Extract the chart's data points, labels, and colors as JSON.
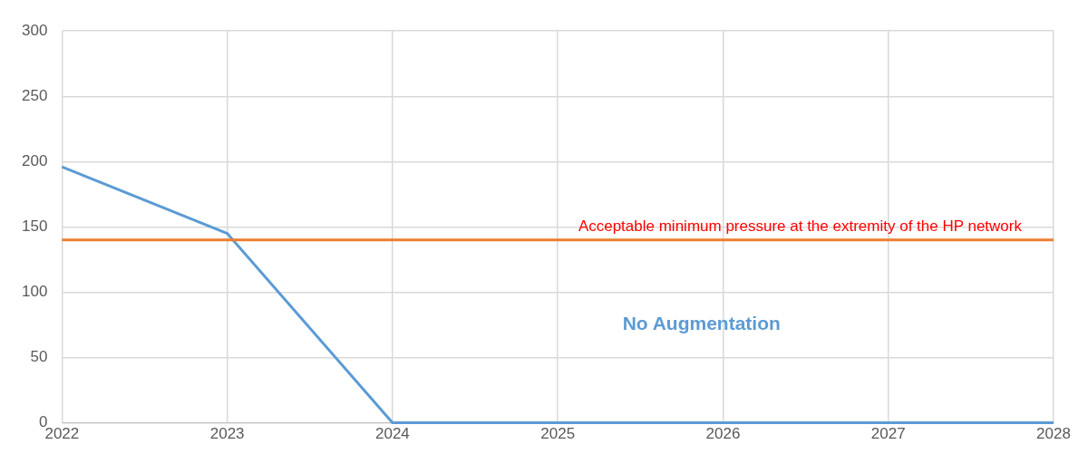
{
  "chart_data": {
    "type": "line",
    "x": [
      2022,
      2023,
      2024,
      2025,
      2026,
      2027,
      2028
    ],
    "series": [
      {
        "name": "No Augmentation",
        "color": "#5b9bd5",
        "values": [
          196,
          145,
          0,
          0,
          0,
          0,
          0
        ]
      }
    ],
    "xlim": [
      2022,
      2028
    ],
    "xticks": [
      2022,
      2023,
      2024,
      2025,
      2026,
      2027,
      2028
    ],
    "ylim": [
      0,
      300
    ],
    "yticks": [
      0,
      50,
      100,
      150,
      200,
      250,
      300
    ],
    "ref_lines": [
      {
        "axis": "y",
        "value": 140,
        "label": "Acceptable minimum pressure at the extremity of the HP network",
        "color": "#ed7d31"
      }
    ],
    "grid": true,
    "legend": false,
    "marker": "none",
    "line_style": "solid"
  }
}
